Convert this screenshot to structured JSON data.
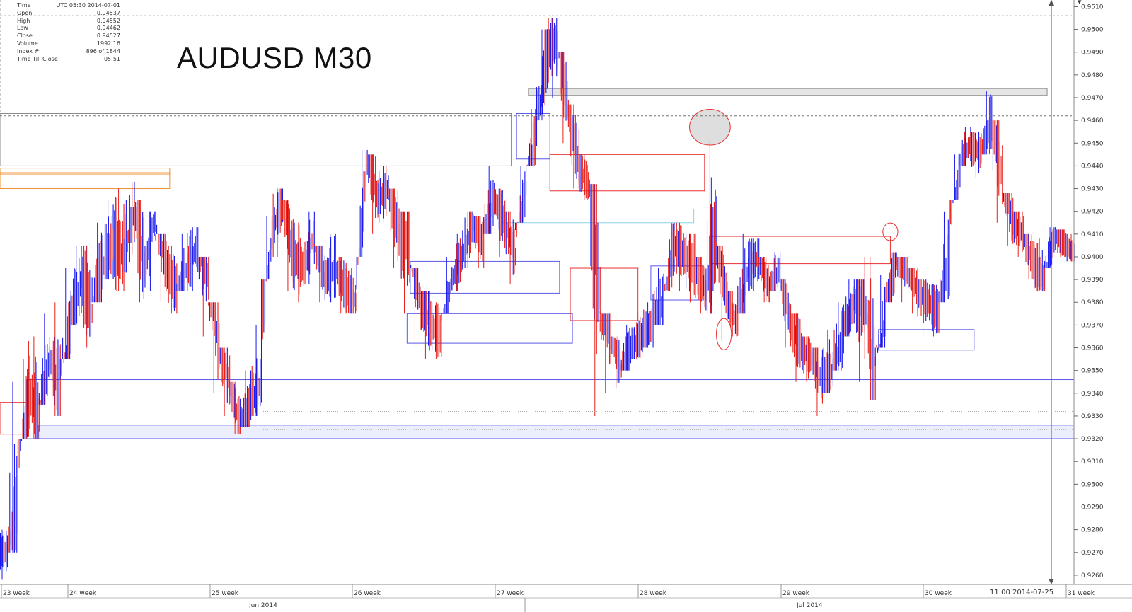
{
  "info_panel": {
    "rows": [
      {
        "label": "Time",
        "value": "UTC 05:30 2014-07-01"
      },
      {
        "label": "Open",
        "value": "0.94537"
      },
      {
        "label": "High",
        "value": "0.94552"
      },
      {
        "label": "Low",
        "value": "0.94462"
      },
      {
        "label": "Close",
        "value": "0.94527"
      },
      {
        "label": "Volume",
        "value": "1992.16"
      },
      {
        "label": "Index #",
        "value": "896 of 1844"
      },
      {
        "label": "Time Till Close",
        "value": "05:51"
      }
    ]
  },
  "overlay_title": "AUDUSD M30",
  "cursor_time": "11:00 2014-07-25",
  "scroll_glyph": "▾",
  "colors": {
    "up": "#1a1aee",
    "down": "#e8201a",
    "zone_blue": "#5a5ae8",
    "zone_red": "#e83030",
    "zone_orange": "#ee9030",
    "zone_gray": "#8a8a8a",
    "zone_cyan": "#8ad4e8",
    "grid": "#d8d8d8"
  },
  "chart_data": {
    "type": "line",
    "subtype": "ohlc-bars",
    "title": "AUDUSD M30",
    "ylim": [
      0.9255,
      0.9512
    ],
    "y_ticks": [
      "0.9510",
      "0.9500",
      "0.9490",
      "0.9480",
      "0.9470",
      "0.9460",
      "0.9450",
      "0.9440",
      "0.9430",
      "0.9420",
      "0.9410",
      "0.9400",
      "0.9390",
      "0.9380",
      "0.9370",
      "0.9360",
      "0.9350",
      "0.9340",
      "0.9330",
      "0.9320",
      "0.9310",
      "0.9300",
      "0.9290",
      "0.9280",
      "0.9270",
      "0.9260"
    ],
    "x_week_labels": [
      "23 week",
      "24 week",
      "25 week",
      "26 week",
      "27 week",
      "28 week",
      "29 week",
      "30 week",
      "31 week"
    ],
    "x_month_labels": [
      "Jun 2014",
      "Jul 2014"
    ],
    "grid": false,
    "series": [
      {
        "values": [
          0.927,
          0.929,
          0.934,
          0.933,
          0.9355,
          0.934,
          0.937,
          0.939,
          0.9375,
          0.9395,
          0.9405,
          0.94,
          0.942,
          0.9395,
          0.942,
          0.9395,
          0.9385,
          0.9395,
          0.9405,
          0.939,
          0.936,
          0.9345,
          0.9325,
          0.9335,
          0.9345,
          0.941,
          0.9425,
          0.94,
          0.9395,
          0.941,
          0.939,
          0.9395,
          0.9385,
          0.938,
          0.9445,
          0.9425,
          0.943,
          0.941,
          0.9405,
          0.938,
          0.937,
          0.9365,
          0.939,
          0.94,
          0.9415,
          0.9405,
          0.9425,
          0.9415,
          0.94,
          0.943,
          0.9455,
          0.949,
          0.9495,
          0.9465,
          0.944,
          0.943,
          0.938,
          0.9365,
          0.935,
          0.936,
          0.9365,
          0.937,
          0.938,
          0.9405,
          0.94,
          0.9395,
          0.9385,
          0.941,
          0.938,
          0.937,
          0.9395,
          0.94,
          0.9385,
          0.9395,
          0.937,
          0.936,
          0.9355,
          0.9345,
          0.935,
          0.9365,
          0.938,
          0.938,
          0.9345,
          0.9375,
          0.94,
          0.9395,
          0.9385,
          0.938,
          0.9375,
          0.94,
          0.944,
          0.945,
          0.9445,
          0.946,
          0.9435,
          0.9415,
          0.941,
          0.9395,
          0.939,
          0.941,
          0.9405,
          0.94
        ],
        "highs": [
          0.928,
          0.9345,
          0.9355,
          0.9365,
          0.9375,
          0.938,
          0.9395,
          0.9405,
          0.9405,
          0.9415,
          0.9425,
          0.943,
          0.9433,
          0.9425,
          0.942,
          0.941,
          0.9405,
          0.941,
          0.9413,
          0.94,
          0.938,
          0.936,
          0.9345,
          0.935,
          0.937,
          0.9418,
          0.943,
          0.9425,
          0.9415,
          0.942,
          0.9405,
          0.941,
          0.94,
          0.9395,
          0.9447,
          0.9445,
          0.944,
          0.943,
          0.942,
          0.9395,
          0.9385,
          0.938,
          0.94,
          0.941,
          0.942,
          0.9418,
          0.944,
          0.943,
          0.942,
          0.944,
          0.9465,
          0.95,
          0.9505,
          0.949,
          0.9467,
          0.9445,
          0.9432,
          0.9375,
          0.9365,
          0.937,
          0.9375,
          0.938,
          0.9395,
          0.9415,
          0.9415,
          0.941,
          0.94,
          0.9435,
          0.9405,
          0.9385,
          0.941,
          0.9408,
          0.94,
          0.9402,
          0.939,
          0.9375,
          0.9365,
          0.936,
          0.9368,
          0.938,
          0.939,
          0.939,
          0.94,
          0.9392,
          0.9402,
          0.94,
          0.9395,
          0.939,
          0.9388,
          0.942,
          0.9445,
          0.9457,
          0.9455,
          0.9473,
          0.946,
          0.9428,
          0.942,
          0.941,
          0.9408,
          0.9413,
          0.9412,
          0.941
        ],
        "lows": [
          0.9258,
          0.927,
          0.932,
          0.932,
          0.9335,
          0.933,
          0.9355,
          0.937,
          0.936,
          0.938,
          0.939,
          0.9385,
          0.9393,
          0.938,
          0.9385,
          0.938,
          0.9375,
          0.9385,
          0.9385,
          0.9365,
          0.934,
          0.933,
          0.9322,
          0.9325,
          0.933,
          0.939,
          0.94,
          0.9385,
          0.938,
          0.9388,
          0.938,
          0.938,
          0.9375,
          0.9375,
          0.94,
          0.941,
          0.9415,
          0.9395,
          0.9375,
          0.936,
          0.9355,
          0.9355,
          0.9375,
          0.9385,
          0.9395,
          0.9395,
          0.941,
          0.94,
          0.9388,
          0.9415,
          0.944,
          0.946,
          0.947,
          0.945,
          0.943,
          0.9425,
          0.933,
          0.934,
          0.9342,
          0.935,
          0.9355,
          0.936,
          0.937,
          0.9385,
          0.9385,
          0.938,
          0.9375,
          0.9375,
          0.9363,
          0.9365,
          0.9375,
          0.9385,
          0.938,
          0.9385,
          0.936,
          0.9345,
          0.9345,
          0.933,
          0.934,
          0.935,
          0.9365,
          0.9345,
          0.9337,
          0.936,
          0.938,
          0.938,
          0.9375,
          0.9365,
          0.9365,
          0.938,
          0.9425,
          0.944,
          0.9435,
          0.9445,
          0.9415,
          0.9405,
          0.94,
          0.939,
          0.9385,
          0.9395,
          0.94,
          0.9398
        ]
      }
    ],
    "zones": [
      {
        "color": "orange",
        "from_pct": 0.0,
        "to_pct": 0.158,
        "top": 0.9439,
        "bottom": 0.943
      },
      {
        "color": "gray",
        "from_pct": 0.0,
        "to_pct": 0.476,
        "top": 0.9463,
        "bottom": 0.944
      },
      {
        "color": "gray",
        "from_pct": 0.492,
        "to_pct": 0.975,
        "top": 0.9474,
        "bottom": 0.9471
      },
      {
        "color": "red",
        "from_pct": 0.0,
        "to_pct": 0.025,
        "top": 0.9336,
        "bottom": 0.9322
      },
      {
        "color": "blue",
        "from_pct": 0.025,
        "to_pct": 1.0,
        "top": 0.9346,
        "bottom": 0.932
      },
      {
        "color": "blue",
        "from_pct": 0.036,
        "to_pct": 1.0,
        "top": 0.9326,
        "bottom": 0.932,
        "filled": true
      },
      {
        "color": "blue",
        "from_pct": 0.382,
        "to_pct": 0.521,
        "top": 0.9398,
        "bottom": 0.9384
      },
      {
        "color": "blue",
        "from_pct": 0.379,
        "to_pct": 0.533,
        "top": 0.9375,
        "bottom": 0.9362
      },
      {
        "color": "blue",
        "from_pct": 0.481,
        "to_pct": 0.512,
        "top": 0.9463,
        "bottom": 0.9443
      },
      {
        "color": "red",
        "from_pct": 0.512,
        "to_pct": 0.656,
        "top": 0.9445,
        "bottom": 0.9429
      },
      {
        "color": "red",
        "from_pct": 0.531,
        "to_pct": 0.594,
        "top": 0.9395,
        "bottom": 0.9372
      },
      {
        "color": "blue",
        "from_pct": 0.606,
        "to_pct": 0.655,
        "top": 0.9396,
        "bottom": 0.9381
      },
      {
        "color": "red",
        "from_pct": 0.663,
        "to_pct": 0.829,
        "top": 0.9409,
        "bottom": 0.9397
      },
      {
        "color": "blue",
        "from_pct": 0.818,
        "to_pct": 0.907,
        "top": 0.9368,
        "bottom": 0.9359
      },
      {
        "color": "cyan",
        "from_pct": 0.468,
        "to_pct": 0.646,
        "top": 0.9421,
        "bottom": 0.9415
      }
    ],
    "ellipses": [
      {
        "color": "red",
        "x_pct": 0.661,
        "y": 0.9457,
        "rx_pct": 0.019,
        "ry": 0.0006,
        "filled": true
      },
      {
        "color": "red",
        "x_pct": 0.674,
        "y": 0.9366,
        "rx_pct": 0.007,
        "ry": 0.0005
      },
      {
        "color": "red",
        "x_pct": 0.829,
        "y": 0.9411,
        "rx_pct": 0.007,
        "ry": 0.0002
      }
    ]
  }
}
